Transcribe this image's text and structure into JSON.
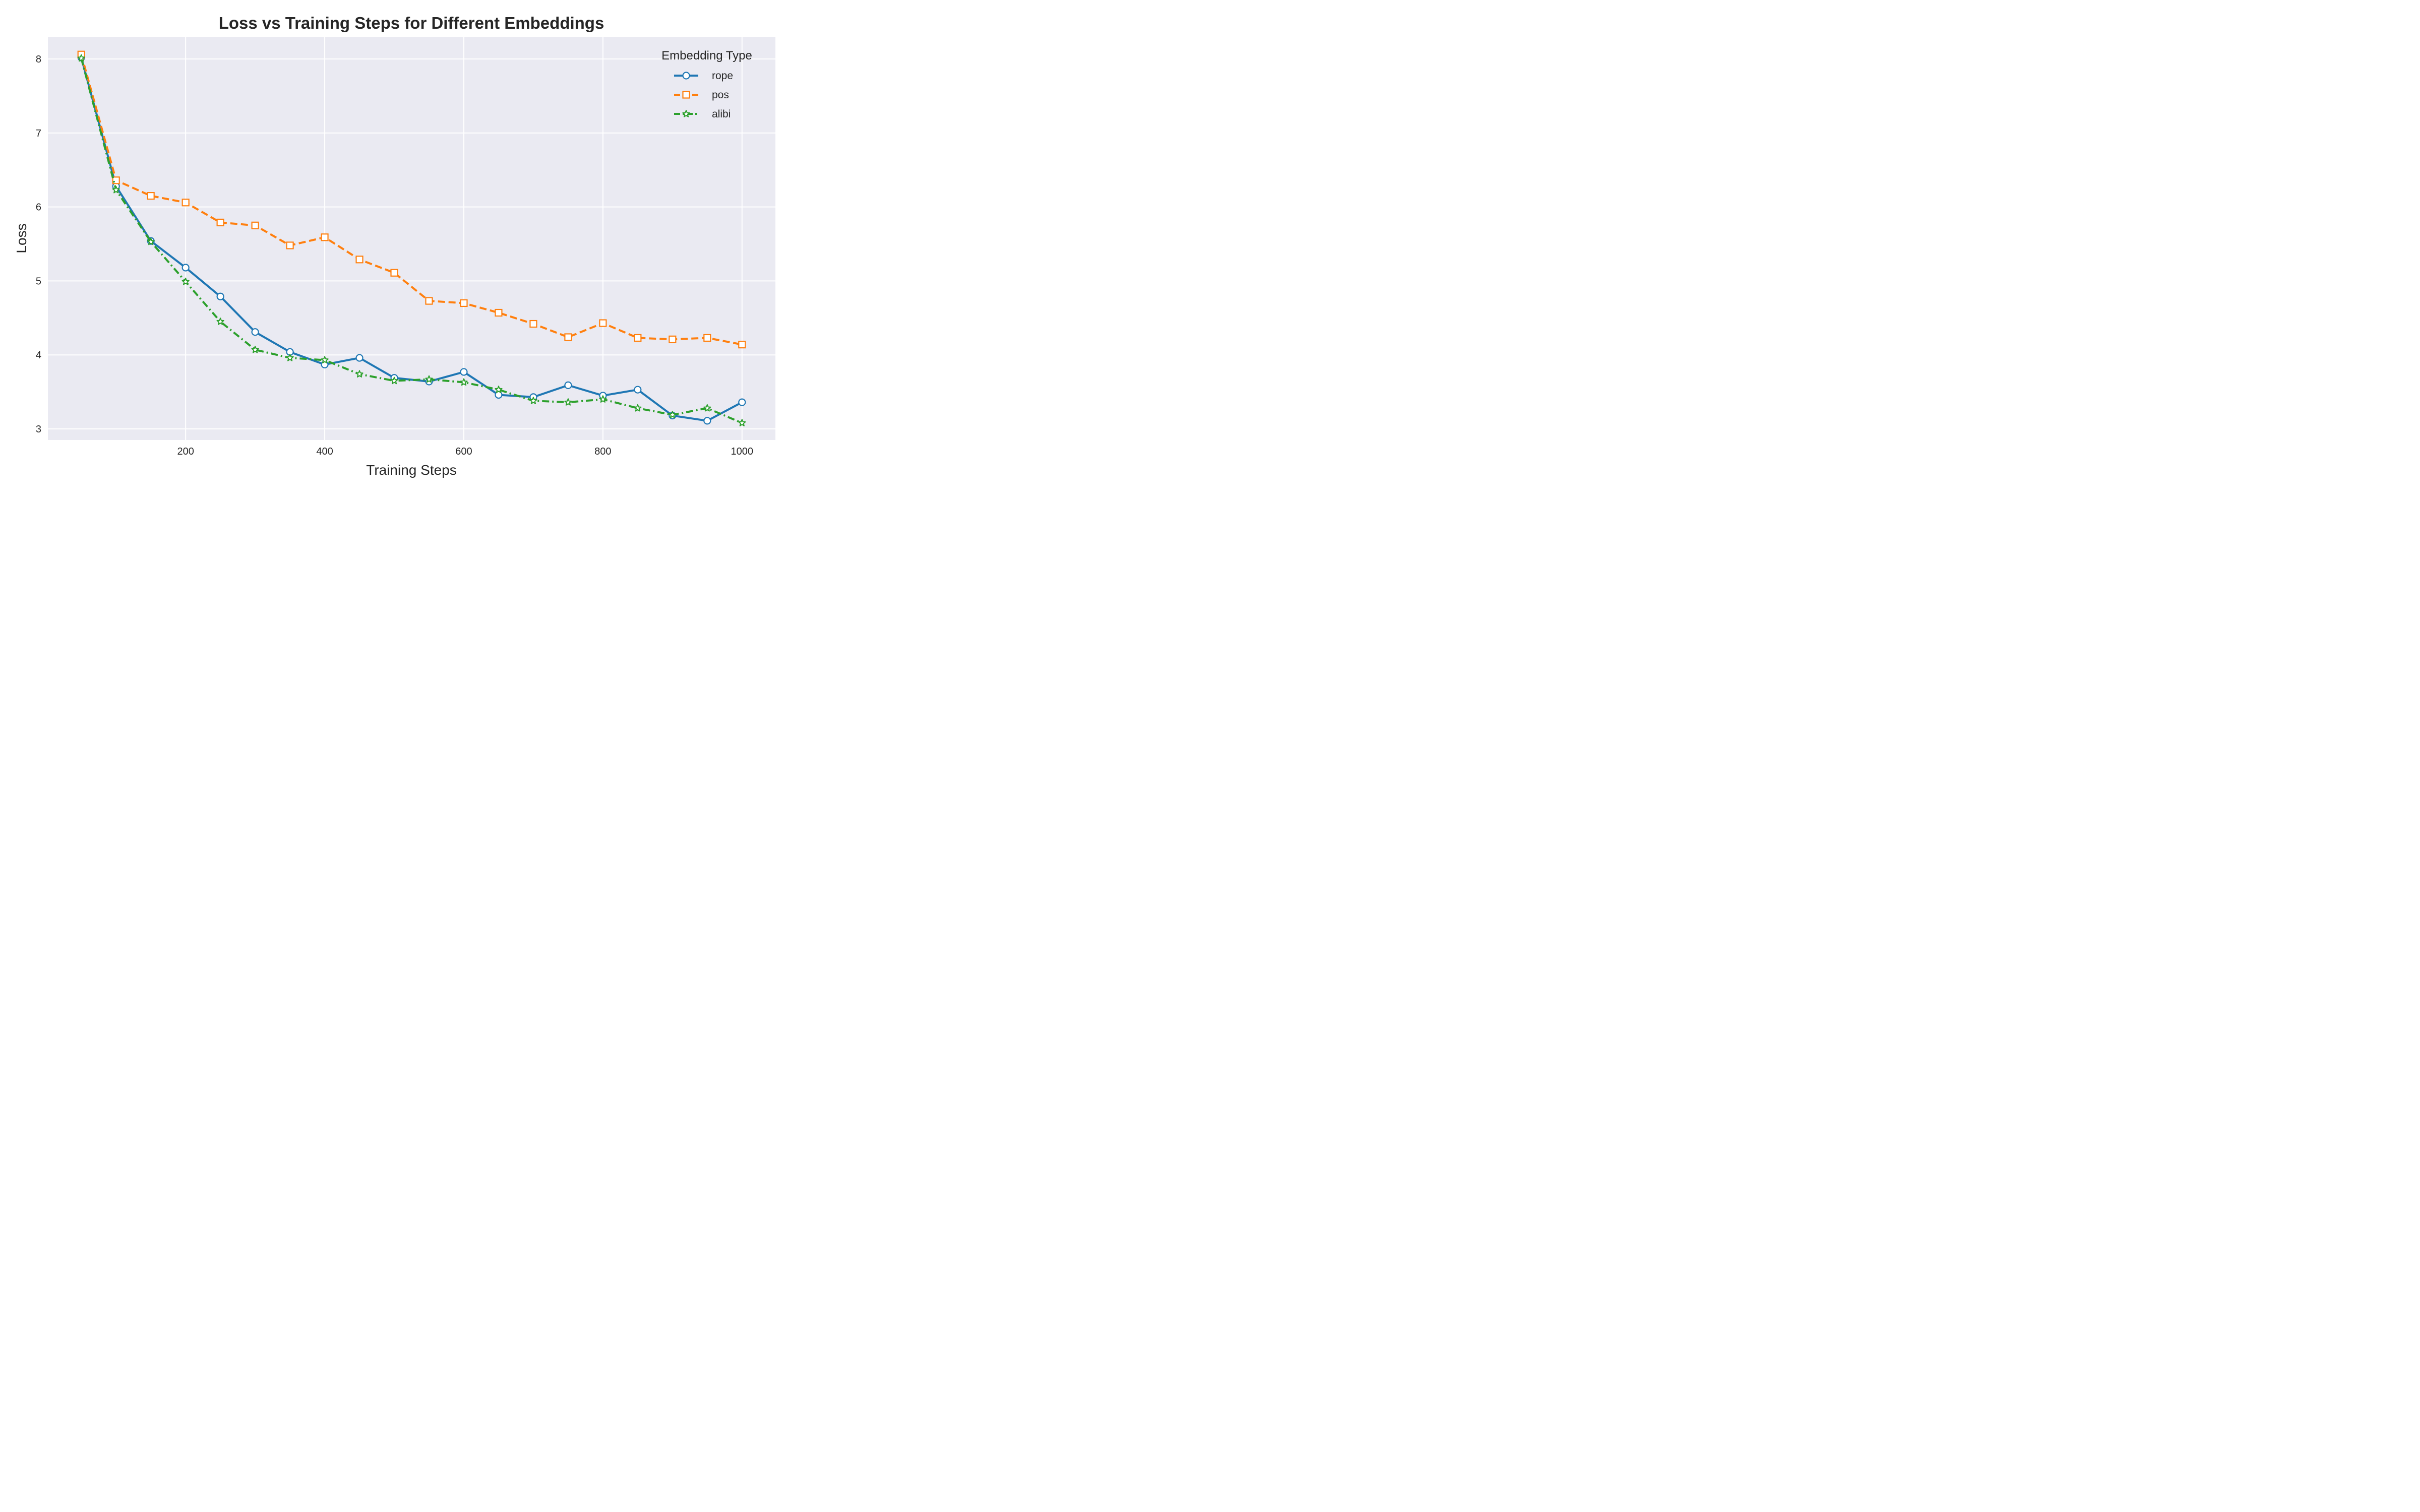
{
  "chart_data": {
    "type": "line",
    "title": "Loss vs Training Steps for Different Embeddings",
    "xlabel": "Training Steps",
    "ylabel": "Loss",
    "xlim": [
      2,
      1048
    ],
    "ylim": [
      2.85,
      8.3
    ],
    "xticks": [
      200,
      400,
      600,
      800,
      1000
    ],
    "yticks": [
      3,
      4,
      5,
      6,
      7,
      8
    ],
    "grid": true,
    "legend": {
      "title": "Embedding Type",
      "location": "top-right"
    },
    "x": [
      50,
      100,
      150,
      200,
      250,
      300,
      350,
      400,
      450,
      500,
      550,
      600,
      650,
      700,
      750,
      800,
      850,
      900,
      950,
      1000
    ],
    "series": [
      {
        "name": "rope",
        "color": "#1f77b4",
        "line_style": "solid",
        "marker": "circle",
        "values": [
          8.02,
          6.28,
          5.54,
          5.18,
          4.79,
          4.31,
          4.04,
          3.87,
          3.96,
          3.69,
          3.64,
          3.77,
          3.46,
          3.43,
          3.59,
          3.45,
          3.53,
          3.18,
          3.11,
          3.36
        ]
      },
      {
        "name": "pos",
        "color": "#ff7f0e",
        "line_style": "dashed",
        "marker": "square",
        "values": [
          8.06,
          6.36,
          6.15,
          6.06,
          5.79,
          5.75,
          5.48,
          5.59,
          5.29,
          5.11,
          4.73,
          4.7,
          4.57,
          4.42,
          4.24,
          4.43,
          4.23,
          4.21,
          4.23,
          4.14
        ]
      },
      {
        "name": "alibi",
        "color": "#2ca02c",
        "line_style": "dashdot",
        "marker": "star",
        "values": [
          8.01,
          6.23,
          5.53,
          4.99,
          4.45,
          4.07,
          3.96,
          3.93,
          3.74,
          3.65,
          3.67,
          3.63,
          3.53,
          3.38,
          3.36,
          3.4,
          3.28,
          3.19,
          3.28,
          3.08
        ]
      }
    ]
  }
}
